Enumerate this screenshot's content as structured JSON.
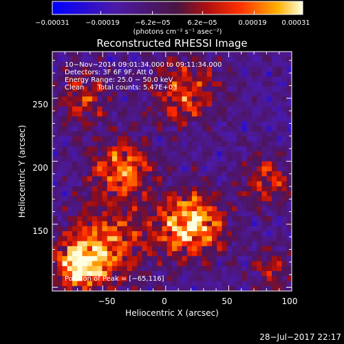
{
  "chart_data": {
    "type": "heatmap",
    "title": "Reconstructed RHESSI Image",
    "xlabel": "Heliocentric X (arcsec)",
    "ylabel": "Heliocentric Y (arcsec)",
    "xlim": [
      -90,
      100
    ],
    "ylim": [
      97,
      287
    ],
    "x_ticks": [
      -50,
      0,
      50,
      100
    ],
    "x_tick_labels": [
      "−50",
      "0",
      "50",
      "100"
    ],
    "y_ticks": [
      150,
      200,
      250
    ],
    "y_tick_labels": [
      "150",
      "200",
      "250"
    ],
    "colorbar": {
      "range": [
        -0.00031,
        0.00031
      ],
      "ticks": [
        -0.00031,
        -0.00019,
        -6.2e-05,
        6.2e-05,
        0.00019,
        0.00031
      ],
      "tick_labels": [
        "−0.00031",
        "−0.00019",
        "−6.2e−05",
        "6.2e−05",
        "0.00019",
        "0.00031"
      ],
      "units_label": "(photons cm⁻² s⁻¹ asec⁻²)"
    },
    "annotations": [
      "10−Nov−2014 09:01:34.000 to 09:11:34.000",
      "Detectors: 3F 6F 9F, Att 0",
      "Energy Range: 25.0 − 50.0 keV",
      "Clean      Total counts: 5.47E+03"
    ],
    "peak_label": "Position of Peak = [−65,116]",
    "sources": [
      {
        "x": 20,
        "y": 150,
        "sigma": 18,
        "amp": 1.0
      },
      {
        "x": -68,
        "y": 118,
        "sigma": 14,
        "amp": 0.95
      },
      {
        "x": -45,
        "y": 135,
        "sigma": 22,
        "amp": 0.6
      },
      {
        "x": -35,
        "y": 195,
        "sigma": 16,
        "amp": 0.75
      },
      {
        "x": 15,
        "y": 255,
        "sigma": 18,
        "amp": 0.6
      },
      {
        "x": -65,
        "y": 250,
        "sigma": 15,
        "amp": 0.45
      },
      {
        "x": 80,
        "y": 185,
        "sigma": 14,
        "amp": 0.5
      },
      {
        "x": 85,
        "y": 115,
        "sigma": 12,
        "amp": 0.35
      }
    ]
  },
  "footer": {
    "timestamp": "28−Jul−2017 22:17"
  }
}
